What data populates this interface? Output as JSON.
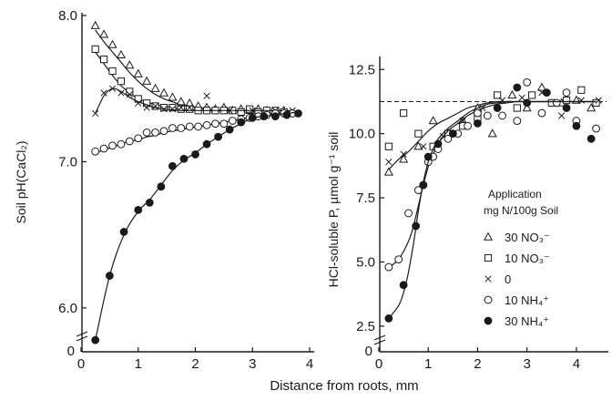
{
  "figure": {
    "xlabel": "Distance  from  roots,  mm",
    "legend_title_1": "Application",
    "legend_title_2": "mg N/100g Soil"
  },
  "chart_data": [
    {
      "type": "scatter",
      "ylabel": "Soil  pH(CaCl₂)",
      "xlim": [
        0,
        4
      ],
      "ylim": [
        5.7,
        8.0
      ],
      "xticks": [
        "0",
        "1",
        "2",
        "3",
        "4"
      ],
      "yticks": [
        {
          "value": 6.0,
          "label": "6.0"
        },
        {
          "value": 7.0,
          "label": "7.0"
        },
        {
          "value": 8.0,
          "label": "8.0"
        }
      ],
      "axis_break_label": "0",
      "series": [
        {
          "name": "30 NO₃⁻",
          "marker": "triangle",
          "x": [
            0.25,
            0.4,
            0.55,
            0.7,
            0.85,
            1.0,
            1.15,
            1.3,
            1.45,
            1.6,
            1.75,
            1.9,
            2.05,
            2.2,
            2.35,
            2.5,
            2.65,
            2.8,
            2.95,
            3.1,
            3.25,
            3.4,
            3.55
          ],
          "y": [
            7.93,
            7.87,
            7.8,
            7.73,
            7.66,
            7.6,
            7.55,
            7.5,
            7.47,
            7.44,
            7.41,
            7.4,
            7.38,
            7.37,
            7.36,
            7.37,
            7.35,
            7.36,
            7.35,
            7.36,
            7.35,
            7.34,
            7.35
          ],
          "curve_y": [
            7.9,
            7.82,
            7.75,
            7.68,
            7.61,
            7.55,
            7.5,
            7.46,
            7.43,
            7.41,
            7.39,
            7.38,
            7.37,
            7.36,
            7.355,
            7.35,
            7.35,
            7.35,
            7.35,
            7.35,
            7.35,
            7.35,
            7.35
          ]
        },
        {
          "name": "10 NO₃⁻",
          "marker": "square",
          "x": [
            0.25,
            0.4,
            0.55,
            0.7,
            0.85,
            1.0,
            1.15,
            1.3,
            1.45,
            1.6,
            1.75,
            1.9,
            2.05,
            2.2,
            2.35,
            2.5,
            2.65,
            2.8,
            2.95,
            3.1,
            3.25,
            3.4,
            3.55
          ],
          "y": [
            7.77,
            7.7,
            7.62,
            7.55,
            7.48,
            7.43,
            7.4,
            7.38,
            7.37,
            7.37,
            7.36,
            7.36,
            7.35,
            7.35,
            7.35,
            7.35,
            7.35,
            7.34,
            7.36,
            7.34,
            7.35,
            7.35,
            7.34
          ],
          "curve_y": [
            7.75,
            7.67,
            7.59,
            7.52,
            7.47,
            7.43,
            7.41,
            7.39,
            7.38,
            7.37,
            7.36,
            7.355,
            7.35,
            7.35,
            7.35,
            7.35,
            7.35,
            7.35,
            7.35,
            7.35,
            7.35,
            7.35,
            7.35
          ]
        },
        {
          "name": "0",
          "marker": "cross",
          "x": [
            0.25,
            0.4,
            0.55,
            0.7,
            0.85,
            1.0,
            1.15,
            1.3,
            1.45,
            1.6,
            1.75,
            1.9,
            2.2,
            2.6,
            3.0,
            3.4,
            3.7
          ],
          "y": [
            7.33,
            7.47,
            7.5,
            7.47,
            7.46,
            7.4,
            7.37,
            7.38,
            7.36,
            7.36,
            7.37,
            7.37,
            7.45,
            7.35,
            7.35,
            7.35,
            7.35
          ],
          "curve_y": [
            7.33,
            7.45,
            7.5,
            7.48,
            7.44,
            7.41,
            7.39,
            7.37,
            7.36,
            7.355,
            7.35,
            7.35,
            7.35,
            7.35,
            7.35,
            7.35,
            7.35
          ]
        },
        {
          "name": "10 NH₄⁺",
          "marker": "circle",
          "x": [
            0.25,
            0.4,
            0.55,
            0.7,
            0.85,
            1.0,
            1.15,
            1.3,
            1.45,
            1.6,
            1.75,
            1.9,
            2.05,
            2.2,
            2.35,
            2.5,
            2.65,
            2.8,
            2.95,
            3.1,
            3.25,
            3.4,
            3.55,
            3.7
          ],
          "y": [
            7.07,
            7.09,
            7.11,
            7.12,
            7.14,
            7.16,
            7.2,
            7.2,
            7.21,
            7.23,
            7.23,
            7.24,
            7.24,
            7.25,
            7.26,
            7.26,
            7.28,
            7.29,
            7.3,
            7.31,
            7.32,
            7.33,
            7.33,
            7.33
          ],
          "curve_y": [
            7.06,
            7.08,
            7.1,
            7.12,
            7.14,
            7.15,
            7.17,
            7.18,
            7.2,
            7.21,
            7.22,
            7.23,
            7.24,
            7.25,
            7.26,
            7.27,
            7.28,
            7.29,
            7.3,
            7.31,
            7.32,
            7.33,
            7.34,
            7.35
          ]
        },
        {
          "name": "30 NH₄⁺",
          "marker": "filled-circle",
          "x": [
            0.25,
            0.5,
            0.75,
            1.0,
            1.2,
            1.4,
            1.6,
            1.8,
            2.0,
            2.2,
            2.4,
            2.6,
            2.8,
            3.0,
            3.2,
            3.4,
            3.6,
            3.8
          ],
          "y": [
            5.78,
            6.22,
            6.52,
            6.67,
            6.72,
            6.83,
            6.97,
            7.02,
            7.05,
            7.12,
            7.17,
            7.22,
            7.27,
            7.3,
            7.31,
            7.31,
            7.32,
            7.33
          ],
          "curve_y": [
            5.78,
            6.22,
            6.5,
            6.66,
            6.74,
            6.84,
            6.94,
            7.01,
            7.06,
            7.12,
            7.17,
            7.22,
            7.26,
            7.3,
            7.31,
            7.32,
            7.33,
            7.34
          ]
        }
      ]
    },
    {
      "type": "scatter",
      "ylabel": "HCl-soluble P,  µmol g⁻¹ soil",
      "xlim": [
        0,
        4.5
      ],
      "ylim": [
        1.5,
        12.9
      ],
      "xticks": [
        "0",
        "1",
        "2",
        "3",
        "4"
      ],
      "yticks": [
        {
          "value": 2.5,
          "label": "2.5"
        },
        {
          "value": 5.0,
          "label": "5.0"
        },
        {
          "value": 7.5,
          "label": "7.5"
        },
        {
          "value": 10.0,
          "label": "10.0"
        },
        {
          "value": 12.5,
          "label": "12.5"
        }
      ],
      "axis_break_label": "0",
      "reference_line": {
        "y": 11.25,
        "style": "dashed"
      },
      "series": [
        {
          "name": "30 NO₃⁻",
          "marker": "triangle",
          "x": [
            0.2,
            0.5,
            0.8,
            1.1,
            1.4,
            1.7,
            2.0,
            2.3,
            2.7,
            3.0,
            3.3,
            3.7,
            4.0,
            4.3
          ],
          "y": [
            8.5,
            9.0,
            9.5,
            10.5,
            10.0,
            10.5,
            11.0,
            10.0,
            11.5,
            11.0,
            11.8,
            11.2,
            11.3,
            11.0
          ],
          "curve_x": [
            0.2,
            0.4,
            0.6,
            0.8,
            1.0,
            1.2,
            1.4,
            1.6,
            1.8,
            2.0,
            2.2,
            2.4,
            2.6,
            2.8,
            3.0,
            3.2,
            3.4,
            3.6,
            3.8,
            4.0,
            4.2,
            4.4
          ],
          "curve_y": [
            8.6,
            9.0,
            9.3,
            9.7,
            10.1,
            10.4,
            10.6,
            10.8,
            11.0,
            11.1,
            11.2,
            11.25,
            11.25,
            11.25,
            11.25,
            11.25,
            11.25,
            11.25,
            11.25,
            11.25,
            11.25,
            11.25
          ]
        },
        {
          "name": "10 NO₃⁻",
          "marker": "square",
          "x": [
            0.2,
            0.5,
            0.8,
            1.1,
            1.4,
            1.7,
            2.0,
            2.4,
            2.8,
            3.1,
            3.5,
            3.8,
            4.1,
            4.4
          ],
          "y": [
            9.5,
            10.8,
            10.0,
            9.5,
            10.0,
            10.3,
            10.6,
            11.5,
            11.0,
            11.5,
            11.2,
            11.3,
            11.7,
            11.2
          ]
        },
        {
          "name": "0",
          "marker": "cross",
          "x": [
            0.2,
            0.5,
            0.9,
            1.3,
            1.7,
            2.1,
            2.5,
            2.9,
            3.3,
            3.7,
            4.1,
            4.45
          ],
          "y": [
            8.9,
            9.2,
            9.5,
            9.9,
            10.5,
            11.0,
            11.3,
            11.4,
            11.6,
            10.7,
            11.3,
            11.3
          ]
        },
        {
          "name": "10 NH₄⁺",
          "marker": "circle",
          "x": [
            0.2,
            0.4,
            0.6,
            0.8,
            0.9,
            1.0,
            1.1,
            1.2,
            1.4,
            1.6,
            1.8,
            2.0,
            2.2,
            2.5,
            2.8,
            3.0,
            3.3,
            3.6,
            3.8,
            4.0,
            4.4
          ],
          "y": [
            4.8,
            5.1,
            6.9,
            7.8,
            8.0,
            8.9,
            9.1,
            9.4,
            9.8,
            10.0,
            10.3,
            10.8,
            10.7,
            10.7,
            10.5,
            12.0,
            10.8,
            11.2,
            11.6,
            10.5,
            10.2
          ],
          "curve_x": [
            0.2,
            0.4,
            0.6,
            0.7,
            0.8,
            0.9,
            1.0,
            1.1,
            1.2,
            1.4,
            1.6,
            1.8,
            2.0,
            2.2,
            2.4,
            2.6,
            2.8,
            3.0,
            3.2,
            3.4,
            3.6,
            3.8,
            4.0,
            4.2,
            4.4
          ],
          "curve_y": [
            4.8,
            5.1,
            5.8,
            6.4,
            7.2,
            8.0,
            8.7,
            9.2,
            9.6,
            10.1,
            10.4,
            10.7,
            10.9,
            11.05,
            11.15,
            11.2,
            11.25,
            11.25,
            11.25,
            11.25,
            11.25,
            11.25,
            11.25,
            11.25,
            11.25
          ]
        },
        {
          "name": "30 NH₄⁺",
          "marker": "filled-circle",
          "x": [
            0.2,
            0.5,
            0.75,
            0.9,
            1.0,
            1.2,
            1.5,
            2.0,
            2.4,
            2.8,
            3.0,
            3.4,
            3.8,
            4.0,
            4.3
          ],
          "y": [
            2.8,
            4.1,
            6.4,
            8.0,
            9.1,
            9.6,
            10.0,
            10.4,
            11.0,
            11.8,
            11.2,
            11.6,
            11.0,
            10.3,
            9.8
          ],
          "curve_x": [
            0.2,
            0.4,
            0.5,
            0.6,
            0.7,
            0.8,
            0.9,
            1.0,
            1.1,
            1.2,
            1.4,
            1.6,
            1.8,
            2.0,
            2.2,
            2.4,
            2.6,
            2.8,
            3.0,
            3.2,
            3.4,
            3.6,
            3.8,
            4.0,
            4.2,
            4.4
          ],
          "curve_y": [
            2.8,
            3.3,
            3.8,
            4.6,
            5.7,
            7.0,
            8.1,
            8.9,
            9.4,
            9.8,
            10.2,
            10.5,
            10.8,
            11.0,
            11.15,
            11.2,
            11.25,
            11.25,
            11.25,
            11.25,
            11.25,
            11.25,
            11.25,
            11.25,
            11.25,
            11.25
          ]
        }
      ]
    }
  ]
}
